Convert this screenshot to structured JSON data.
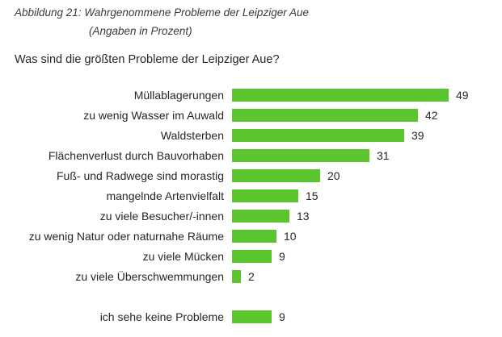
{
  "figure": {
    "caption_line1": "Abbildung 21: Wahrgenommene Probleme der Leipziger Aue",
    "caption_line2": "(Angaben in Prozent)"
  },
  "question": "Was sind die größten Probleme der Leipziger Aue?",
  "colors": {
    "bar_green": "#5bc52e",
    "text": "#262626"
  },
  "chart_data": {
    "type": "bar",
    "orientation": "horizontal",
    "title": "Was sind die größten Probleme der Leipziger Aue?",
    "subtitle": "Angaben in Prozent",
    "value_unit": "percent",
    "xlim": [
      0,
      55
    ],
    "grid": false,
    "legend": "none",
    "categories": [
      "Müllablagerungen",
      "zu wenig Wasser im Auwald",
      "Waldsterben",
      "Flächenverlust durch Bauvorhaben",
      "Fuß- und Radwege sind morastig",
      "mangelnde Artenvielfalt",
      "zu viele Besucher/-innen",
      "zu wenig Natur oder naturnahe Räume",
      "zu viele Mücken",
      "zu viele Überschwemmungen",
      "ich sehe keine Probleme"
    ],
    "values": [
      49,
      42,
      39,
      31,
      20,
      15,
      13,
      10,
      9,
      2,
      9
    ],
    "separated_last_row": true
  }
}
